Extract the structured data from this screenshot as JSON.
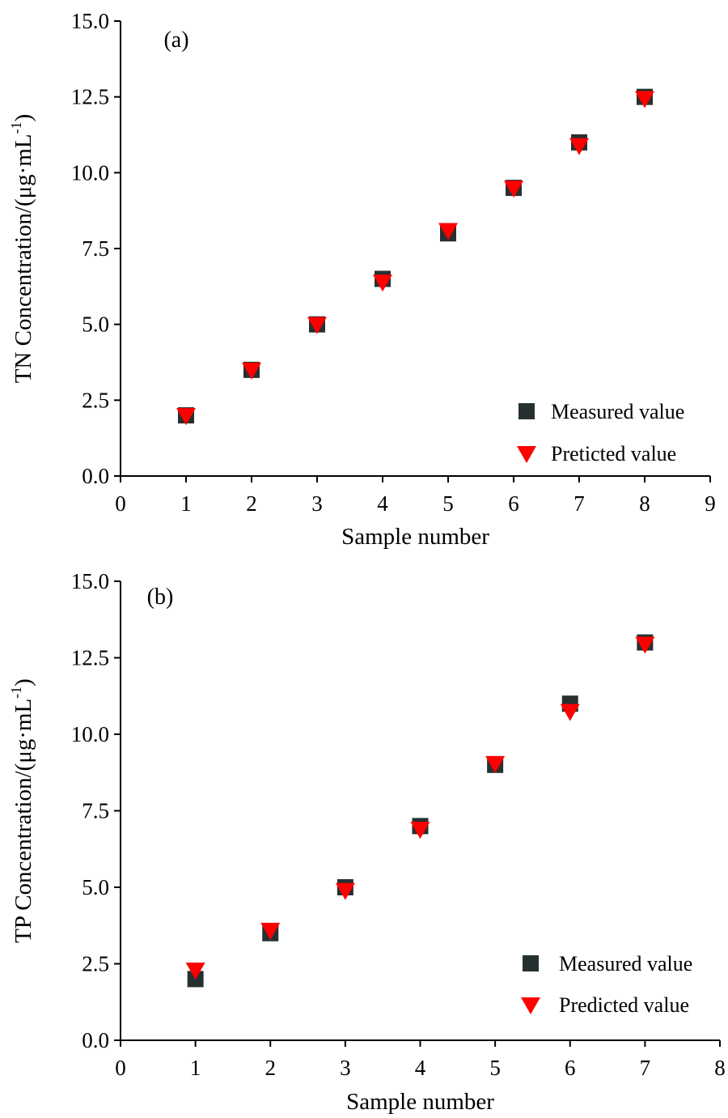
{
  "chart_data": [
    {
      "type": "scatter",
      "panel_label": "(a)",
      "xlabel": "Sample number",
      "ylabel": "TN Concentration/(μg·mL",
      "ylabel_sup": "-1",
      "ylabel_close": ")",
      "xlim": [
        0,
        9
      ],
      "ylim": [
        0,
        15
      ],
      "xticks": [
        0,
        1,
        2,
        3,
        4,
        5,
        6,
        7,
        8,
        9
      ],
      "yticks": [
        0.0,
        2.5,
        5.0,
        7.5,
        10.0,
        12.5,
        15.0
      ],
      "xtick_labels": [
        "0",
        "1",
        "2",
        "3",
        "4",
        "5",
        "6",
        "7",
        "8",
        "9"
      ],
      "ytick_labels": [
        "0.0",
        "2.5",
        "5.0",
        "7.5",
        "10.0",
        "12.5",
        "15.0"
      ],
      "grid": false,
      "legend_position": "bottom-right",
      "series": [
        {
          "name": "Measured value",
          "marker": "square",
          "color": "#263030",
          "x": [
            1,
            2,
            3,
            4,
            5,
            6,
            7,
            8
          ],
          "y": [
            2.0,
            3.5,
            5.0,
            6.5,
            8.0,
            9.5,
            11.0,
            12.5
          ]
        },
        {
          "name": "Preticted value",
          "marker": "triangle-down",
          "color": "#ff0000",
          "x": [
            1,
            2,
            3,
            4,
            5,
            6,
            7,
            8
          ],
          "y": [
            2.0,
            3.5,
            5.0,
            6.4,
            8.1,
            9.5,
            10.9,
            12.45
          ]
        }
      ]
    },
    {
      "type": "scatter",
      "panel_label": "(b)",
      "xlabel": "Sample number",
      "ylabel": "TP Concentration/(μg·mL",
      "ylabel_sup": "-1",
      "ylabel_close": ")",
      "xlim": [
        0,
        8
      ],
      "ylim": [
        0,
        15
      ],
      "xticks": [
        0,
        1,
        2,
        3,
        4,
        5,
        6,
        7,
        8
      ],
      "yticks": [
        0.0,
        2.5,
        5.0,
        7.5,
        10.0,
        12.5,
        15.0
      ],
      "xtick_labels": [
        "0",
        "1",
        "2",
        "3",
        "4",
        "5",
        "6",
        "7",
        "8"
      ],
      "ytick_labels": [
        "0.0",
        "2.5",
        "5.0",
        "7.5",
        "10.0",
        "12.5",
        "15.0"
      ],
      "grid": false,
      "legend_position": "bottom-right",
      "series": [
        {
          "name": "Measured value",
          "marker": "square",
          "color": "#263030",
          "x": [
            1,
            2,
            3,
            4,
            5,
            6,
            7
          ],
          "y": [
            2.0,
            3.5,
            5.0,
            7.0,
            9.0,
            11.0,
            13.0
          ]
        },
        {
          "name": "Predicted value",
          "marker": "triangle-down",
          "color": "#ff0000",
          "x": [
            1,
            2,
            3,
            4,
            5,
            6,
            7
          ],
          "y": [
            2.3,
            3.6,
            4.9,
            6.9,
            9.05,
            10.75,
            12.95
          ]
        }
      ]
    }
  ]
}
